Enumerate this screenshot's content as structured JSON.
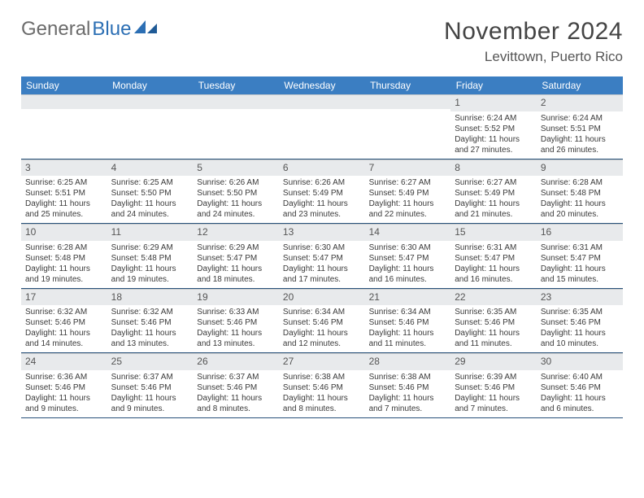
{
  "brand": {
    "general": "General",
    "blue": "Blue"
  },
  "title": "November 2024",
  "location": "Levittown, Puerto Rico",
  "colors": {
    "header_bg": "#3b7ec2",
    "header_text": "#ffffff",
    "daynum_bg": "#e8eaec",
    "border": "#28517a"
  },
  "weekdays": [
    "Sunday",
    "Monday",
    "Tuesday",
    "Wednesday",
    "Thursday",
    "Friday",
    "Saturday"
  ],
  "weeks": [
    [
      null,
      null,
      null,
      null,
      null,
      {
        "n": "1",
        "sr": "6:24 AM",
        "ss": "5:52 PM",
        "dl": "11 hours and 27 minutes."
      },
      {
        "n": "2",
        "sr": "6:24 AM",
        "ss": "5:51 PM",
        "dl": "11 hours and 26 minutes."
      }
    ],
    [
      {
        "n": "3",
        "sr": "6:25 AM",
        "ss": "5:51 PM",
        "dl": "11 hours and 25 minutes."
      },
      {
        "n": "4",
        "sr": "6:25 AM",
        "ss": "5:50 PM",
        "dl": "11 hours and 24 minutes."
      },
      {
        "n": "5",
        "sr": "6:26 AM",
        "ss": "5:50 PM",
        "dl": "11 hours and 24 minutes."
      },
      {
        "n": "6",
        "sr": "6:26 AM",
        "ss": "5:49 PM",
        "dl": "11 hours and 23 minutes."
      },
      {
        "n": "7",
        "sr": "6:27 AM",
        "ss": "5:49 PM",
        "dl": "11 hours and 22 minutes."
      },
      {
        "n": "8",
        "sr": "6:27 AM",
        "ss": "5:49 PM",
        "dl": "11 hours and 21 minutes."
      },
      {
        "n": "9",
        "sr": "6:28 AM",
        "ss": "5:48 PM",
        "dl": "11 hours and 20 minutes."
      }
    ],
    [
      {
        "n": "10",
        "sr": "6:28 AM",
        "ss": "5:48 PM",
        "dl": "11 hours and 19 minutes."
      },
      {
        "n": "11",
        "sr": "6:29 AM",
        "ss": "5:48 PM",
        "dl": "11 hours and 19 minutes."
      },
      {
        "n": "12",
        "sr": "6:29 AM",
        "ss": "5:47 PM",
        "dl": "11 hours and 18 minutes."
      },
      {
        "n": "13",
        "sr": "6:30 AM",
        "ss": "5:47 PM",
        "dl": "11 hours and 17 minutes."
      },
      {
        "n": "14",
        "sr": "6:30 AM",
        "ss": "5:47 PM",
        "dl": "11 hours and 16 minutes."
      },
      {
        "n": "15",
        "sr": "6:31 AM",
        "ss": "5:47 PM",
        "dl": "11 hours and 16 minutes."
      },
      {
        "n": "16",
        "sr": "6:31 AM",
        "ss": "5:47 PM",
        "dl": "11 hours and 15 minutes."
      }
    ],
    [
      {
        "n": "17",
        "sr": "6:32 AM",
        "ss": "5:46 PM",
        "dl": "11 hours and 14 minutes."
      },
      {
        "n": "18",
        "sr": "6:32 AM",
        "ss": "5:46 PM",
        "dl": "11 hours and 13 minutes."
      },
      {
        "n": "19",
        "sr": "6:33 AM",
        "ss": "5:46 PM",
        "dl": "11 hours and 13 minutes."
      },
      {
        "n": "20",
        "sr": "6:34 AM",
        "ss": "5:46 PM",
        "dl": "11 hours and 12 minutes."
      },
      {
        "n": "21",
        "sr": "6:34 AM",
        "ss": "5:46 PM",
        "dl": "11 hours and 11 minutes."
      },
      {
        "n": "22",
        "sr": "6:35 AM",
        "ss": "5:46 PM",
        "dl": "11 hours and 11 minutes."
      },
      {
        "n": "23",
        "sr": "6:35 AM",
        "ss": "5:46 PM",
        "dl": "11 hours and 10 minutes."
      }
    ],
    [
      {
        "n": "24",
        "sr": "6:36 AM",
        "ss": "5:46 PM",
        "dl": "11 hours and 9 minutes."
      },
      {
        "n": "25",
        "sr": "6:37 AM",
        "ss": "5:46 PM",
        "dl": "11 hours and 9 minutes."
      },
      {
        "n": "26",
        "sr": "6:37 AM",
        "ss": "5:46 PM",
        "dl": "11 hours and 8 minutes."
      },
      {
        "n": "27",
        "sr": "6:38 AM",
        "ss": "5:46 PM",
        "dl": "11 hours and 8 minutes."
      },
      {
        "n": "28",
        "sr": "6:38 AM",
        "ss": "5:46 PM",
        "dl": "11 hours and 7 minutes."
      },
      {
        "n": "29",
        "sr": "6:39 AM",
        "ss": "5:46 PM",
        "dl": "11 hours and 7 minutes."
      },
      {
        "n": "30",
        "sr": "6:40 AM",
        "ss": "5:46 PM",
        "dl": "11 hours and 6 minutes."
      }
    ]
  ],
  "labels": {
    "sunrise": "Sunrise: ",
    "sunset": "Sunset: ",
    "daylight": "Daylight: "
  }
}
